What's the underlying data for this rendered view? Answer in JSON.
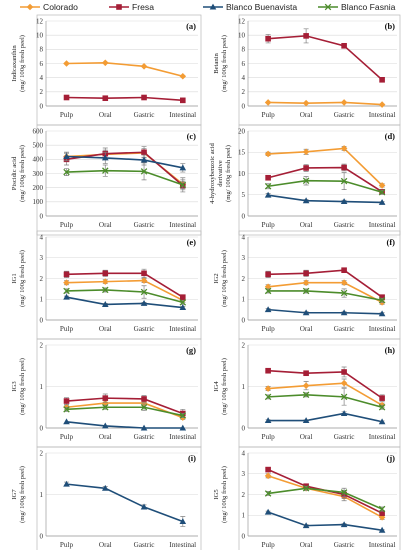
{
  "legend": [
    {
      "name": "Colorado",
      "color": "#F39C34",
      "marker": "diamond"
    },
    {
      "name": "Fresa",
      "color": "#A51E36",
      "marker": "square"
    },
    {
      "name": "Blanco Buenavista",
      "color": "#1F4E79",
      "marker": "triangle"
    },
    {
      "name": "Blanco Fasnia",
      "color": "#4C8C2B",
      "marker": "x"
    }
  ],
  "chart_data": [
    {
      "type": "line",
      "panel_label": "(a)",
      "ylabel": [
        "Indicaxanthin",
        "(mg/ 100g fresh peel)"
      ],
      "categories": [
        "Pulp",
        "Oral",
        "Gastric",
        "Intestinal"
      ],
      "ylim": [
        0,
        12
      ],
      "yticks": [
        0,
        2,
        4,
        6,
        8,
        10,
        12
      ],
      "grid": true,
      "series": [
        {
          "name": "Colorado",
          "values": [
            6.0,
            6.1,
            5.6,
            4.2
          ]
        },
        {
          "name": "Fresa",
          "values": [
            1.2,
            1.1,
            1.2,
            0.8
          ]
        }
      ]
    },
    {
      "type": "line",
      "panel_label": "(b)",
      "ylabel": [
        "Betanin",
        "(mg/ 100g fresh peel)"
      ],
      "categories": [
        "Pulp",
        "Oral",
        "Gastric",
        "Intestinal"
      ],
      "ylim": [
        0,
        12
      ],
      "yticks": [
        0,
        2,
        4,
        6,
        8,
        10,
        12
      ],
      "grid": true,
      "series": [
        {
          "name": "Colorado",
          "values": [
            0.5,
            0.4,
            0.5,
            0.2
          ]
        },
        {
          "name": "Fresa",
          "values": [
            9.5,
            9.9,
            8.5,
            3.7
          ],
          "errors": [
            0.6,
            1.0,
            0,
            0.3
          ]
        }
      ]
    },
    {
      "type": "line",
      "panel_label": "(c)",
      "ylabel": [
        "Piscidic acid",
        "(mg/ 100g fresh peel)"
      ],
      "categories": [
        "Pulp",
        "Oral",
        "Gastric",
        "Intestinal"
      ],
      "ylim": [
        0,
        600
      ],
      "yticks": [
        0,
        100,
        200,
        300,
        400,
        500,
        600
      ],
      "grid": true,
      "series": [
        {
          "name": "Colorado",
          "values": [
            420,
            435,
            445,
            225
          ],
          "errors": [
            30,
            30,
            30,
            30
          ]
        },
        {
          "name": "Fresa",
          "values": [
            400,
            440,
            450,
            215
          ],
          "errors": [
            40,
            40,
            40,
            30
          ]
        },
        {
          "name": "Blanco Buenavista",
          "values": [
            420,
            410,
            395,
            340
          ],
          "errors": [
            30,
            40,
            35,
            30
          ]
        },
        {
          "name": "Blanco Fasnia",
          "values": [
            310,
            320,
            315,
            220
          ],
          "errors": [
            25,
            40,
            60,
            50
          ]
        }
      ]
    },
    {
      "type": "line",
      "panel_label": "(d)",
      "ylabel": [
        "4-hydroxybenzoic acid",
        "derivative",
        "(mg/ 100g fresh peel)"
      ],
      "categories": [
        "Pulp",
        "Oral",
        "Gastric",
        "Intestinal"
      ],
      "ylim": [
        0,
        20
      ],
      "yticks": [
        0,
        5,
        10,
        15,
        20
      ],
      "grid": true,
      "series": [
        {
          "name": "Colorado",
          "values": [
            14.6,
            15.1,
            15.9,
            7.2
          ],
          "errors": [
            0.4,
            0.6,
            0.5,
            0.4
          ]
        },
        {
          "name": "Fresa",
          "values": [
            9.0,
            11.3,
            11.4,
            5.7
          ],
          "errors": [
            0.5,
            0.8,
            0.8,
            0.4
          ]
        },
        {
          "name": "Blanco Buenavista",
          "values": [
            4.9,
            3.6,
            3.4,
            3.2
          ],
          "errors": [
            0.4,
            0.3,
            0.3,
            0.2
          ]
        },
        {
          "name": "Blanco Fasnia",
          "values": [
            7.0,
            8.3,
            8.2,
            5.6
          ],
          "errors": [
            0.6,
            1.0,
            2.0,
            0.5
          ]
        }
      ]
    },
    {
      "type": "line",
      "panel_label": "(e)",
      "ylabel": [
        "IG1",
        "(mg/ 100g fresh peel)"
      ],
      "categories": [
        "Pulp",
        "Oral",
        "Gastric",
        "Intestinal"
      ],
      "ylim": [
        0,
        4
      ],
      "yticks": [
        0,
        1,
        2,
        3,
        4
      ],
      "grid": true,
      "series": [
        {
          "name": "Colorado",
          "values": [
            1.8,
            1.85,
            1.9,
            0.95
          ],
          "errors": [
            0.1,
            0.1,
            0.1,
            0.1
          ]
        },
        {
          "name": "Fresa",
          "values": [
            2.2,
            2.25,
            2.25,
            1.1
          ],
          "errors": [
            0.15,
            0.15,
            0.2,
            0.1
          ]
        },
        {
          "name": "Blanco Buenavista",
          "values": [
            1.1,
            0.75,
            0.8,
            0.6
          ],
          "errors": [
            0.05,
            0.05,
            0.05,
            0.05
          ]
        },
        {
          "name": "Blanco Fasnia",
          "values": [
            1.4,
            1.45,
            1.35,
            0.85
          ],
          "errors": [
            0.1,
            0.1,
            0.3,
            0.1
          ]
        }
      ]
    },
    {
      "type": "line",
      "panel_label": "(f)",
      "ylabel": [
        "IG2",
        "(mg/ 100g fresh peel)"
      ],
      "categories": [
        "Pulp",
        "Oral",
        "Gastric",
        "Intestinal"
      ],
      "ylim": [
        0,
        4
      ],
      "yticks": [
        0,
        1,
        2,
        3,
        4
      ],
      "grid": true,
      "series": [
        {
          "name": "Colorado",
          "values": [
            1.6,
            1.8,
            1.8,
            0.85
          ],
          "errors": [
            0.1,
            0.1,
            0.1,
            0.1
          ]
        },
        {
          "name": "Fresa",
          "values": [
            2.2,
            2.25,
            2.4,
            1.1
          ],
          "errors": [
            0.15,
            0.15,
            0.1,
            0.1
          ]
        },
        {
          "name": "Blanco Buenavista",
          "values": [
            0.5,
            0.35,
            0.35,
            0.3
          ],
          "errors": [
            0.05,
            0.05,
            0.05,
            0.05
          ]
        },
        {
          "name": "Blanco Fasnia",
          "values": [
            1.4,
            1.4,
            1.3,
            0.95
          ],
          "errors": [
            0.1,
            0.1,
            0.2,
            0.1
          ]
        }
      ]
    },
    {
      "type": "line",
      "panel_label": "(g)",
      "ylabel": [
        "IG3",
        "(mg/ 100g fresh peel)"
      ],
      "categories": [
        "Pulp",
        "Oral",
        "Gastric",
        "Intestinal"
      ],
      "ylim": [
        0,
        2
      ],
      "yticks": [
        0,
        1,
        2
      ],
      "grid": true,
      "series": [
        {
          "name": "Colorado",
          "values": [
            0.5,
            0.6,
            0.6,
            0.25
          ],
          "errors": [
            0.05,
            0.1,
            0.1,
            0.05
          ]
        },
        {
          "name": "Fresa",
          "values": [
            0.65,
            0.72,
            0.7,
            0.35
          ],
          "errors": [
            0.08,
            0.1,
            0.08,
            0.1
          ]
        },
        {
          "name": "Blanco Buenavista",
          "values": [
            0.15,
            0.05,
            0.0,
            0.0
          ]
        },
        {
          "name": "Blanco Fasnia",
          "values": [
            0.45,
            0.5,
            0.5,
            0.3
          ],
          "errors": [
            0.05,
            0.05,
            0.08,
            0.05
          ]
        }
      ]
    },
    {
      "type": "line",
      "panel_label": "(h)",
      "ylabel": [
        "IG4",
        "(mg/ 100g fresh peel)"
      ],
      "categories": [
        "Pulp",
        "Oral",
        "Gastric",
        "Intestinal"
      ],
      "ylim": [
        0,
        2
      ],
      "yticks": [
        0,
        1,
        2
      ],
      "grid": true,
      "series": [
        {
          "name": "Colorado",
          "values": [
            0.95,
            1.02,
            1.08,
            0.55
          ],
          "errors": [
            0.05,
            0.1,
            0.1,
            0.05
          ]
        },
        {
          "name": "Fresa",
          "values": [
            1.38,
            1.32,
            1.35,
            0.72
          ],
          "errors": [
            0.05,
            0.05,
            0.12,
            0.08
          ]
        },
        {
          "name": "Blanco Buenavista",
          "values": [
            0.18,
            0.18,
            0.35,
            0.15
          ],
          "errors": [
            0.02,
            0.02,
            0.04,
            0.02
          ]
        },
        {
          "name": "Blanco Fasnia",
          "values": [
            0.75,
            0.8,
            0.75,
            0.5
          ],
          "errors": [
            0.05,
            0.05,
            0.2,
            0.05
          ]
        }
      ]
    },
    {
      "type": "line",
      "panel_label": "(i)",
      "ylabel": [
        "IG7",
        "(mg/ 100g fresh peel)"
      ],
      "categories": [
        "Pulp",
        "Oral",
        "Gastric",
        "Intestinal"
      ],
      "ylim": [
        0,
        2
      ],
      "yticks": [
        0,
        1,
        2
      ],
      "grid": true,
      "series": [
        {
          "name": "Blanco Buenavista",
          "values": [
            1.25,
            1.15,
            0.7,
            0.35
          ],
          "errors": [
            0.05,
            0.04,
            0.05,
            0.12
          ]
        }
      ]
    },
    {
      "type": "line",
      "panel_label": "(j)",
      "ylabel": [
        "IG5",
        "(mg/ 100g fresh peel)"
      ],
      "categories": [
        "Pulp",
        "Oral",
        "Gastric",
        "Intestinal"
      ],
      "ylim": [
        0,
        4
      ],
      "yticks": [
        0,
        1,
        2,
        3,
        4
      ],
      "grid": true,
      "series": [
        {
          "name": "Colorado",
          "values": [
            2.9,
            2.3,
            1.9,
            0.9
          ],
          "errors": [
            0.1,
            0.1,
            0.2,
            0.1
          ]
        },
        {
          "name": "Fresa",
          "values": [
            3.2,
            2.4,
            2.0,
            1.1
          ],
          "errors": [
            0.1,
            0.1,
            0.2,
            0.1
          ]
        },
        {
          "name": "Blanco Buenavista",
          "values": [
            1.15,
            0.5,
            0.55,
            0.28
          ],
          "errors": [
            0.05,
            0.05,
            0.05,
            0.03
          ]
        },
        {
          "name": "Blanco Fasnia",
          "values": [
            2.05,
            2.3,
            2.1,
            1.3
          ],
          "errors": [
            0.1,
            0.1,
            0.2,
            0.1
          ]
        }
      ]
    }
  ]
}
